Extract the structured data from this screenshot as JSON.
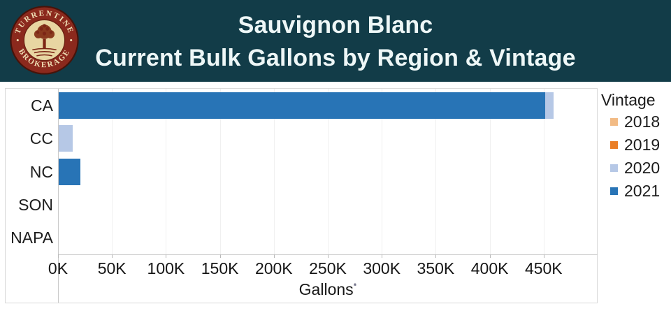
{
  "header": {
    "title_line1": "Sauvignon Blanc",
    "title_line2": "Current Bulk Gallons by Region & Vintage",
    "logo": {
      "top_text": "TURRENTINE",
      "bottom_text": "BROKERAGE",
      "ring_color": "#8b291d",
      "ring_edge_color": "#47130a",
      "center_color": "#e8d6a2",
      "art_color": "#7c2616"
    },
    "background_color": "#123c48",
    "text_color": "#eef7f7"
  },
  "chart_data": {
    "type": "bar",
    "orientation": "horizontal",
    "stacked": true,
    "title": "Sauvignon Blanc — Current Bulk Gallons by Region & Vintage",
    "categories": [
      "CA",
      "CC",
      "NC",
      "SON",
      "NAPA"
    ],
    "series": [
      {
        "name": "2018",
        "color": "#f2bb85",
        "values_k": [
          0,
          0,
          0,
          0,
          0
        ]
      },
      {
        "name": "2019",
        "color": "#ea7e26",
        "values_k": [
          0,
          0,
          0,
          0,
          0
        ]
      },
      {
        "name": "2020",
        "color": "#b6c8e6",
        "values_k": [
          8,
          13,
          0,
          0,
          0
        ]
      },
      {
        "name": "2021",
        "color": "#2874b6",
        "values_k": [
          451,
          0,
          20,
          0,
          0
        ]
      }
    ],
    "stack_order": [
      "2021",
      "2020",
      "2019",
      "2018"
    ],
    "xlabel": "Gallons",
    "xlabel_note": "*",
    "x_ticks": [
      "0K",
      "50K",
      "100K",
      "150K",
      "200K",
      "250K",
      "300K",
      "350K",
      "400K",
      "450K"
    ],
    "x_tick_interval_k": 50,
    "x_axis_max_k": 500,
    "unit": "gallons (K)",
    "grid": "faint vertical",
    "legend": {
      "title": "Vintage",
      "position": "right",
      "items": [
        {
          "label": "2018",
          "color": "#f2bb85"
        },
        {
          "label": "2019",
          "color": "#ea7e26"
        },
        {
          "label": "2020",
          "color": "#b6c8e6"
        },
        {
          "label": "2021",
          "color": "#2874b6"
        }
      ]
    }
  }
}
